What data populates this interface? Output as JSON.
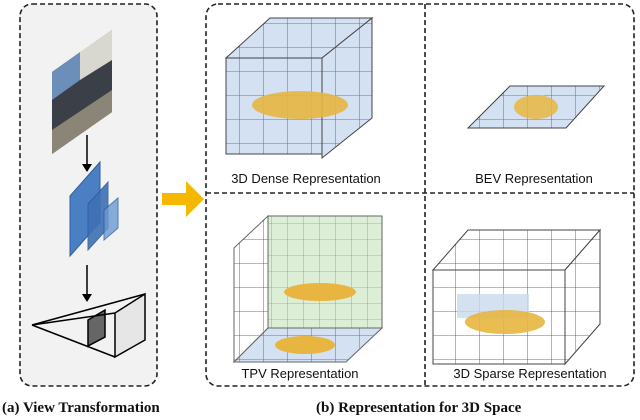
{
  "left_panel": {
    "caption": "(a) View Transformation"
  },
  "right_panel": {
    "caption": "(b) Representation for 3D Space",
    "quadrants": [
      {
        "label": "3D Dense Representation"
      },
      {
        "label": "BEV Representation"
      },
      {
        "label": "TPV Representation"
      },
      {
        "label": "3D Sparse Representation"
      }
    ]
  },
  "colors": {
    "arrow": "#f5b800",
    "feature_map": "#4a7fc4",
    "grid_fill": "#c9d9ee",
    "tpv_fill": "#d8ecd0",
    "panel_bg": "#f2f2f2"
  }
}
